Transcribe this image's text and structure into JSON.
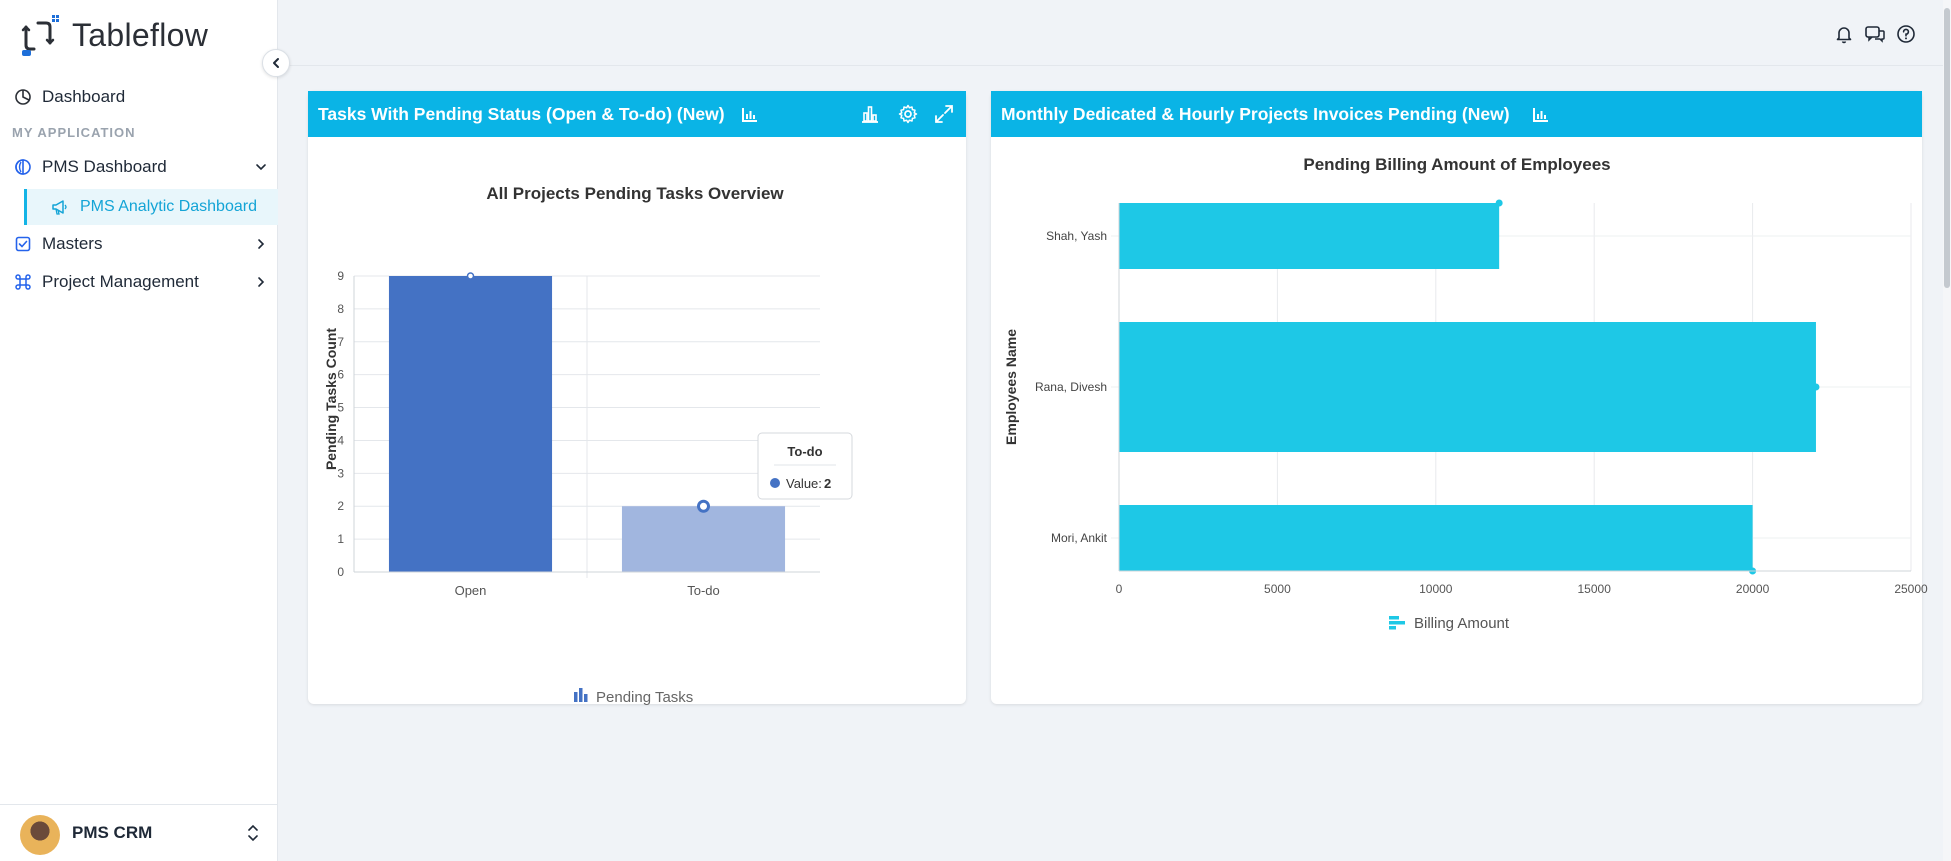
{
  "app": {
    "name": "Tableflow"
  },
  "sidebar": {
    "dashboard_label": "Dashboard",
    "section_title": "MY APPLICATION",
    "items": [
      {
        "label": "PMS Dashboard",
        "icon": "circle-half-icon"
      },
      {
        "label": "PMS Analytic Dashboard",
        "icon": "megaphone-icon"
      },
      {
        "label": "Masters",
        "icon": "checkbox-icon"
      },
      {
        "label": "Project Management",
        "icon": "command-icon"
      }
    ],
    "user": {
      "name": "PMS CRM"
    }
  },
  "colors": {
    "accent": "#0ab4e6",
    "bar_primary": "#4472c4",
    "bar_muted": "#a1b6df",
    "bar_cyan": "#1ec8e6"
  },
  "cards": [
    {
      "title": "Tasks With Pending Status (Open & To-do) (New)",
      "chart_data": {
        "type": "bar",
        "title": "All Projects Pending Tasks Overview",
        "categories": [
          "Open",
          "To-do"
        ],
        "values": [
          9,
          2
        ],
        "ylabel": "Pending Tasks Count",
        "xlabel": "",
        "ylim": [
          0,
          9
        ],
        "yticks": [
          "0",
          "1",
          "2",
          "3",
          "4",
          "5",
          "6",
          "7",
          "8",
          "9"
        ],
        "legend": "Pending Tasks",
        "tooltip": {
          "title": "To-do",
          "label": "Value:",
          "value": "2"
        }
      }
    },
    {
      "title": "Monthly Dedicated & Hourly Projects Invoices Pending (New)",
      "chart_data": {
        "type": "bar",
        "orientation": "horizontal",
        "title": "Pending Billing Amount of Employees",
        "categories": [
          "Shah, Yash",
          "Rana, Divesh",
          "Mori, Ankit"
        ],
        "values": [
          12000,
          22000,
          20000
        ],
        "ylabel": "Employees Name",
        "xlabel": "",
        "xlim": [
          0,
          25000
        ],
        "xticks": [
          "0",
          "5000",
          "10000",
          "15000",
          "20000",
          "25000"
        ],
        "legend": "Billing Amount"
      }
    }
  ]
}
